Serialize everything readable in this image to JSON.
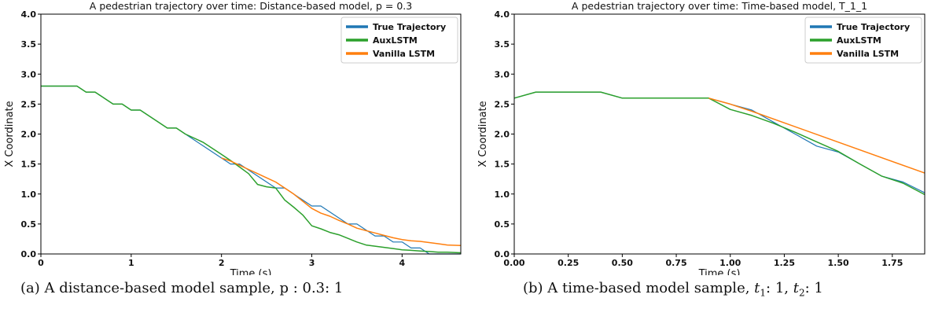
{
  "chart_data": [
    {
      "type": "line",
      "title": "A pedestrian trajectory over time: Distance-based model, p = 0.3",
      "xlabel": "Time (s)",
      "ylabel": "X Coordinate",
      "xlim": [
        0,
        4.65
      ],
      "ylim": [
        0,
        4.0
      ],
      "xticks": [
        0,
        1,
        2,
        3,
        4
      ],
      "xtick_labels": [
        "0",
        "1",
        "2",
        "3",
        "4"
      ],
      "yticks": [
        0.0,
        0.5,
        1.0,
        1.5,
        2.0,
        2.5,
        3.0,
        3.5,
        4.0
      ],
      "ytick_labels": [
        "0.0",
        "0.5",
        "1.0",
        "1.5",
        "2.0",
        "2.5",
        "3.0",
        "3.5",
        "4.0"
      ],
      "legend_position": "top-right",
      "series": [
        {
          "name": "True Trajectory",
          "color": "#1f77b4",
          "x": [
            0,
            0.4,
            0.5,
            0.6,
            0.8,
            0.9,
            1.0,
            1.1,
            1.4,
            1.5,
            1.6,
            1.8,
            2.0,
            2.1,
            2.2,
            2.3,
            2.4,
            2.5,
            2.6,
            2.7,
            2.8,
            2.9,
            3.0,
            3.1,
            3.2,
            3.3,
            3.4,
            3.5,
            3.6,
            3.7,
            3.8,
            3.9,
            4.0,
            4.1,
            4.2,
            4.3,
            4.4,
            4.5,
            4.65
          ],
          "y": [
            2.8,
            2.8,
            2.7,
            2.7,
            2.5,
            2.5,
            2.4,
            2.4,
            2.1,
            2.1,
            2.0,
            1.8,
            1.6,
            1.5,
            1.5,
            1.4,
            1.3,
            1.2,
            1.1,
            1.1,
            1.0,
            0.9,
            0.8,
            0.8,
            0.7,
            0.6,
            0.5,
            0.5,
            0.4,
            0.3,
            0.3,
            0.2,
            0.2,
            0.1,
            0.1,
            0.0,
            0.0,
            0.0,
            0.0
          ]
        },
        {
          "name": "AuxLSTM",
          "color": "#2ca02c",
          "x": [
            0,
            0.4,
            0.5,
            0.6,
            0.8,
            0.9,
            1.0,
            1.1,
            1.4,
            1.5,
            1.6,
            1.8,
            2.0,
            2.1,
            2.2,
            2.3,
            2.4,
            2.5,
            2.6,
            2.7,
            2.8,
            2.9,
            3.0,
            3.1,
            3.2,
            3.3,
            3.4,
            3.5,
            3.6,
            3.7,
            3.8,
            3.9,
            4.0,
            4.1,
            4.2,
            4.3,
            4.4,
            4.5,
            4.65
          ],
          "y": [
            2.8,
            2.8,
            2.7,
            2.7,
            2.5,
            2.5,
            2.4,
            2.4,
            2.1,
            2.1,
            2.0,
            1.86,
            1.66,
            1.56,
            1.45,
            1.34,
            1.16,
            1.12,
            1.1,
            0.9,
            0.78,
            0.65,
            0.47,
            0.42,
            0.36,
            0.32,
            0.26,
            0.2,
            0.15,
            0.13,
            0.11,
            0.09,
            0.07,
            0.06,
            0.05,
            0.04,
            0.03,
            0.03,
            0.02
          ]
        },
        {
          "name": "Vanilla LSTM",
          "color": "#ff7f0e",
          "x": [
            2.0,
            2.1,
            2.2,
            2.3,
            2.4,
            2.5,
            2.6,
            2.7,
            2.8,
            2.9,
            3.0,
            3.1,
            3.2,
            3.3,
            3.4,
            3.5,
            3.6,
            3.7,
            3.8,
            3.9,
            4.0,
            4.1,
            4.2,
            4.3,
            4.4,
            4.5,
            4.65
          ],
          "y": [
            1.6,
            1.55,
            1.48,
            1.41,
            1.34,
            1.27,
            1.2,
            1.1,
            1.0,
            0.88,
            0.76,
            0.68,
            0.63,
            0.56,
            0.5,
            0.43,
            0.39,
            0.35,
            0.31,
            0.27,
            0.24,
            0.22,
            0.21,
            0.19,
            0.17,
            0.15,
            0.14
          ]
        }
      ]
    },
    {
      "type": "line",
      "title": "A pedestrian trajectory over time: Time-based model, T_1_1",
      "xlabel": "Time (s)",
      "ylabel": "X Coordinate",
      "xlim": [
        0,
        1.9
      ],
      "ylim": [
        0,
        4.0
      ],
      "xticks": [
        0,
        0.25,
        0.5,
        0.75,
        1.0,
        1.25,
        1.5,
        1.75
      ],
      "xtick_labels": [
        "0.00",
        "0.25",
        "0.50",
        "0.75",
        "1.00",
        "1.25",
        "1.50",
        "1.75"
      ],
      "yticks": [
        0.0,
        0.5,
        1.0,
        1.5,
        2.0,
        2.5,
        3.0,
        3.5,
        4.0
      ],
      "ytick_labels": [
        "0.0",
        "0.5",
        "1.0",
        "1.5",
        "2.0",
        "2.5",
        "3.0",
        "3.5",
        "4.0"
      ],
      "legend_position": "top-right",
      "series": [
        {
          "name": "True Trajectory",
          "color": "#1f77b4",
          "x": [
            0.0,
            0.1,
            0.4,
            0.5,
            0.9,
            1.0,
            1.1,
            1.2,
            1.3,
            1.4,
            1.5,
            1.6,
            1.7,
            1.8,
            1.9
          ],
          "y": [
            2.6,
            2.7,
            2.7,
            2.6,
            2.6,
            2.5,
            2.4,
            2.2,
            2.0,
            1.8,
            1.7,
            1.5,
            1.3,
            1.2,
            1.02
          ]
        },
        {
          "name": "AuxLSTM",
          "color": "#2ca02c",
          "x": [
            0.0,
            0.1,
            0.4,
            0.5,
            0.9,
            1.0,
            1.1,
            1.2,
            1.3,
            1.4,
            1.5,
            1.6,
            1.7,
            1.8,
            1.9
          ],
          "y": [
            2.6,
            2.7,
            2.7,
            2.6,
            2.6,
            2.41,
            2.31,
            2.18,
            2.03,
            1.87,
            1.71,
            1.5,
            1.3,
            1.18,
            0.99
          ]
        },
        {
          "name": "Vanilla LSTM",
          "color": "#ff7f0e",
          "x": [
            0.9,
            1.0,
            1.1,
            1.9
          ],
          "y": [
            2.6,
            2.5,
            2.38,
            1.35
          ]
        }
      ]
    }
  ],
  "captions": {
    "left": "(a) A distance-based model sample, p : 0.3: 1",
    "right_prefix": "(b) A time-based model sample, ",
    "t1_var": "t",
    "t1_sub": "1",
    "t1_value": ": 1, ",
    "t2_var": "t",
    "t2_sub": "2",
    "t2_value": ": 1"
  }
}
